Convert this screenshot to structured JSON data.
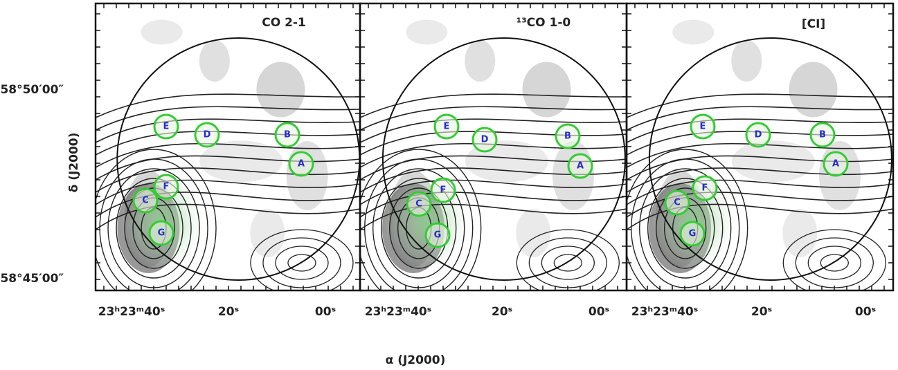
{
  "figure": {
    "x_axis_label": "α (J2000)",
    "y_axis_label": "δ (J2000)",
    "y_ticks": [
      "58°50′00″",
      "58°45′00″"
    ],
    "panels": [
      {
        "title": "CO 2-1",
        "x_ticks": [
          "23ʰ23ᵐ40ˢ",
          "20ˢ",
          "00ˢ"
        ],
        "sources": [
          "E",
          "D",
          "B",
          "A",
          "F",
          "C",
          "G"
        ]
      },
      {
        "title": "¹³CO 1-0",
        "x_ticks": [
          "23ʰ23ᵐ40ˢ",
          "20ˢ",
          "00ˢ"
        ],
        "sources": [
          "E",
          "D",
          "B",
          "A",
          "F",
          "C",
          "G"
        ]
      },
      {
        "title": "[CI]",
        "x_ticks": [
          "23ʰ23ᵐ40ˢ",
          "20ˢ",
          "00ˢ"
        ],
        "sources": [
          "E",
          "D",
          "B",
          "A",
          "F",
          "C",
          "G"
        ]
      }
    ]
  }
}
